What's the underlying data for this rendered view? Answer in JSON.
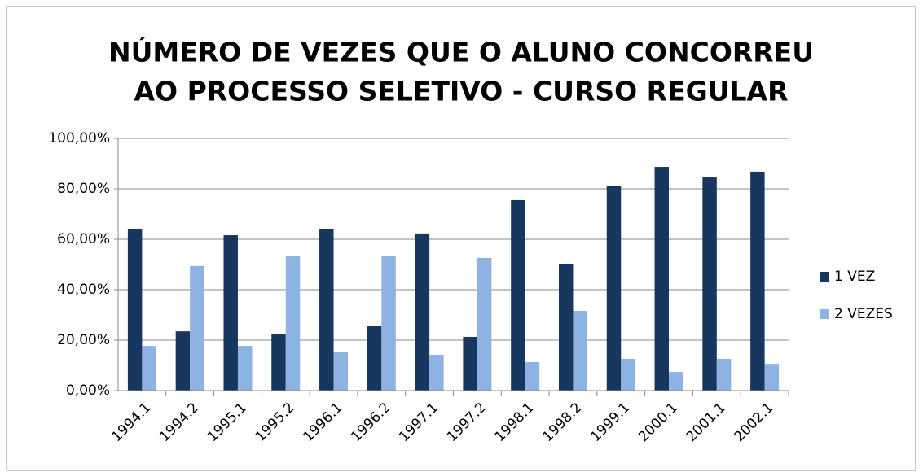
{
  "chart_data": {
    "type": "bar",
    "title": [
      "NÚMERO DE VEZES QUE O ALUNO CONCORREU",
      "AO PROCESSO SELETIVO - CURSO REGULAR"
    ],
    "categories": [
      "1994.1",
      "1994.2",
      "1995.1",
      "1995.2",
      "1996.1",
      "1996.2",
      "1997.1",
      "1997.2",
      "1998.1",
      "1998.2",
      "1999.1",
      "2000.1",
      "2001.1",
      "2002.1"
    ],
    "series": [
      {
        "name": "1 VEZ",
        "color": "#17375e",
        "values": [
          63.9,
          23.5,
          61.6,
          22.3,
          63.9,
          25.5,
          62.3,
          21.3,
          75.5,
          50.3,
          81.3,
          88.7,
          84.5,
          86.8
        ]
      },
      {
        "name": "2 VEZES",
        "color": "#8db3e2",
        "values": [
          17.7,
          49.4,
          17.7,
          53.2,
          15.5,
          53.5,
          14.2,
          52.6,
          11.3,
          31.6,
          12.6,
          7.4,
          12.6,
          10.6
        ]
      }
    ],
    "ylim": [
      0,
      100
    ],
    "yticks": [
      {
        "value": 0,
        "label": "0,00%"
      },
      {
        "value": 20,
        "label": "20,00%"
      },
      {
        "value": 40,
        "label": "40,00%"
      },
      {
        "value": 60,
        "label": "60,00%"
      },
      {
        "value": 80,
        "label": "80,00%"
      },
      {
        "value": 100,
        "label": "100,00%"
      }
    ],
    "grid": true,
    "legend": "right"
  }
}
